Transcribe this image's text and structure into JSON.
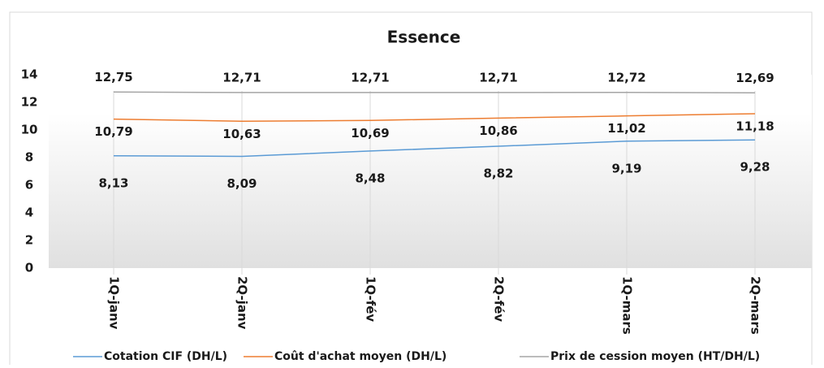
{
  "chart_data": {
    "type": "line",
    "title": "Essence",
    "categories": [
      "1Q-janv",
      "2Q-janv",
      "1Q-fév",
      "2Q-fév",
      "1Q-mars",
      "2Q-mars"
    ],
    "series": [
      {
        "name": "Cotation CIF  (DH/L)",
        "color": "#5b9bd5",
        "values": [
          8.13,
          8.09,
          8.48,
          8.82,
          9.19,
          9.28
        ],
        "value_labels": [
          "8,13",
          "8,09",
          "8,48",
          "8,82",
          "9,19",
          "9,28"
        ]
      },
      {
        "name": "Coût d'achat moyen (DH/L)",
        "color": "#ed7d31",
        "values": [
          10.79,
          10.63,
          10.69,
          10.86,
          11.02,
          11.18
        ],
        "value_labels": [
          "10,79",
          "10,63",
          "10,69",
          "10,86",
          "11,02",
          "11,18"
        ]
      },
      {
        "name": "Prix de cession moyen (HT/DH/L)",
        "color": "#a5a5a5",
        "values": [
          12.75,
          12.71,
          12.71,
          12.71,
          12.72,
          12.69
        ],
        "value_labels": [
          "12,75",
          "12,71",
          "12,71",
          "12,71",
          "12,72",
          "12,69"
        ]
      }
    ],
    "ylim": [
      0,
      14
    ],
    "yticks": [
      0,
      2,
      4,
      6,
      8,
      10,
      12,
      14
    ],
    "legend": "bottom"
  }
}
